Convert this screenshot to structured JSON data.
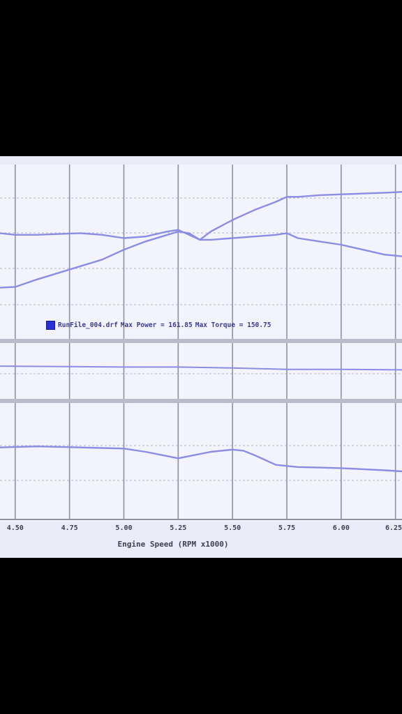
{
  "chart_data": {
    "type": "line",
    "xlabel": "Engine Speed (RPM x1000)",
    "x_ticks": [
      "4.50",
      "4.75",
      "5.00",
      "5.25",
      "5.50",
      "5.75",
      "6.00",
      "6.25"
    ],
    "xlim": [
      4.43,
      6.28
    ],
    "legend": {
      "series_name": "RunFile_004.drf",
      "power_label": "Max Power = 161.85",
      "torque_label": "Max Torque = 150.75",
      "swatch_color": "#2a2fd8"
    },
    "line_color": "#8b8ce3",
    "panels": [
      {
        "name": "top",
        "y_range": [
          0,
          100
        ],
        "series": [
          {
            "x": [
              4.43,
              4.5,
              4.6,
              4.7,
              4.8,
              4.9,
              5.0,
              5.1,
              5.2,
              5.25,
              5.3,
              5.35,
              5.4,
              5.5,
              5.6,
              5.7,
              5.75,
              5.8,
              5.9,
              6.0,
              6.1,
              6.2,
              6.28
            ],
            "y": [
              28,
              28.5,
              33,
              37,
              41,
              45,
              51,
              56,
              60,
              62,
              61,
              57,
              62,
              69,
              75,
              80,
              83,
              83,
              84,
              84.5,
              85,
              85.5,
              86
            ]
          },
          {
            "x": [
              4.43,
              4.5,
              4.6,
              4.7,
              4.8,
              4.9,
              5.0,
              5.1,
              5.2,
              5.25,
              5.3,
              5.35,
              5.4,
              5.5,
              5.6,
              5.7,
              5.75,
              5.8,
              5.9,
              6.0,
              6.1,
              6.2,
              6.28
            ],
            "y": [
              61,
              60,
              60,
              60.5,
              61,
              60,
              58,
              59,
              62,
              63,
              60,
              57,
              57,
              58,
              59,
              60,
              61,
              58,
              56,
              54,
              51,
              48,
              47
            ]
          }
        ]
      },
      {
        "name": "middle",
        "y_range": [
          0,
          100
        ],
        "series": [
          {
            "x": [
              4.43,
              4.75,
              5.0,
              5.25,
              5.5,
              5.75,
              6.0,
              6.28
            ],
            "y": [
              62,
              61,
              60,
              60,
              58,
              55,
              55,
              54
            ]
          }
        ]
      },
      {
        "name": "bottom",
        "y_range": [
          0,
          100
        ],
        "series": [
          {
            "x": [
              4.43,
              4.6,
              4.8,
              5.0,
              5.1,
              5.2,
              5.25,
              5.3,
              5.4,
              5.5,
              5.55,
              5.6,
              5.7,
              5.8,
              5.9,
              6.0,
              6.1,
              6.2,
              6.28
            ],
            "y": [
              63,
              64,
              63,
              62,
              59,
              55,
              53,
              55,
              59,
              61,
              60,
              56,
              47,
              45,
              44.5,
              44,
              43,
              42,
              41
            ]
          }
        ]
      }
    ]
  }
}
